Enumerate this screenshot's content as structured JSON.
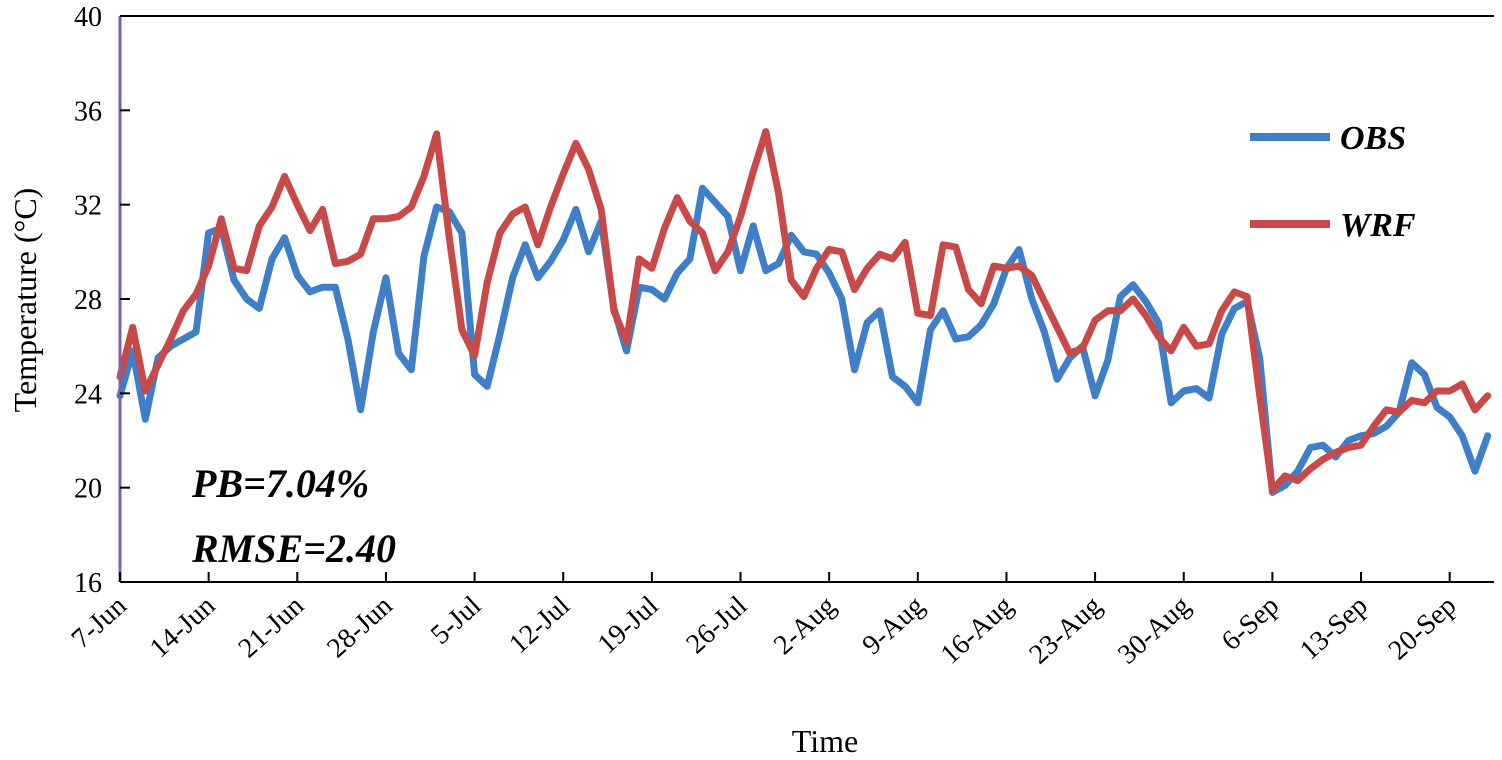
{
  "chart_data": {
    "type": "line",
    "xlabel": "Time",
    "ylabel": "Temperature (°C)",
    "ylim": [
      16,
      40
    ],
    "yticks": [
      16,
      20,
      24,
      28,
      32,
      36,
      40
    ],
    "x_start": "7-Jun",
    "x_tick_labels": [
      "7-Jun",
      "14-Jun",
      "21-Jun",
      "28-Jun",
      "5-Jul",
      "12-Jul",
      "19-Jul",
      "26-Jul",
      "2-Aug",
      "9-Aug",
      "16-Aug",
      "23-Aug",
      "30-Aug",
      "6-Sep",
      "13-Sep",
      "20-Sep"
    ],
    "x_tick_interval_days": 7,
    "legend_position": "top-right",
    "annotations": [
      "PB=7.04%",
      "RMSE=2.40"
    ],
    "series": [
      {
        "name": "OBS",
        "color": "#3f7fc8",
        "values": [
          23.9,
          25.8,
          22.9,
          25.5,
          26.0,
          26.3,
          26.6,
          30.8,
          31.0,
          28.8,
          28.0,
          27.6,
          29.7,
          30.6,
          29.0,
          28.3,
          28.5,
          28.5,
          26.3,
          23.3,
          26.6,
          28.9,
          25.7,
          25.0,
          29.8,
          31.9,
          31.7,
          30.8,
          24.8,
          24.3,
          26.5,
          28.9,
          30.3,
          28.9,
          29.6,
          30.5,
          31.8,
          30.0,
          31.3,
          27.6,
          25.8,
          28.5,
          28.4,
          28.0,
          29.1,
          29.7,
          32.7,
          32.1,
          31.5,
          29.2,
          31.1,
          29.2,
          29.5,
          30.7,
          30.0,
          29.9,
          29.1,
          28.0,
          25.0,
          27.0,
          27.5,
          24.7,
          24.3,
          23.6,
          26.7,
          27.5,
          26.3,
          26.4,
          26.9,
          27.8,
          29.3,
          30.1,
          28.0,
          26.6,
          24.6,
          25.5,
          26.0,
          23.9,
          25.4,
          28.1,
          28.6,
          27.9,
          27.0,
          23.6,
          24.1,
          24.2,
          23.8,
          26.5,
          27.6,
          27.9,
          25.5,
          19.8,
          20.1,
          20.7,
          21.7,
          21.8,
          21.3,
          22.0,
          22.2,
          22.3,
          22.6,
          23.2,
          25.3,
          24.8,
          23.4,
          23.0,
          22.2,
          20.7,
          22.2
        ]
      },
      {
        "name": "WRF",
        "color": "#c84a48",
        "values": [
          24.7,
          26.8,
          24.1,
          25.2,
          26.3,
          27.5,
          28.2,
          29.4,
          31.4,
          29.3,
          29.2,
          31.1,
          31.9,
          33.2,
          32.0,
          30.9,
          31.8,
          29.5,
          29.6,
          29.9,
          31.4,
          31.4,
          31.5,
          31.9,
          33.2,
          35.0,
          30.6,
          26.7,
          25.6,
          28.7,
          30.8,
          31.6,
          31.9,
          30.3,
          31.9,
          33.3,
          34.6,
          33.5,
          31.8,
          27.5,
          26.2,
          29.7,
          29.3,
          31.0,
          32.3,
          31.3,
          30.8,
          29.2,
          30.0,
          31.5,
          33.4,
          35.1,
          32.5,
          28.8,
          28.1,
          29.3,
          30.1,
          30.0,
          28.4,
          29.3,
          29.9,
          29.7,
          30.4,
          27.4,
          27.3,
          30.3,
          30.2,
          28.4,
          27.8,
          29.4,
          29.3,
          29.4,
          29.0,
          27.9,
          26.8,
          25.7,
          25.9,
          27.1,
          27.5,
          27.5,
          28.0,
          27.3,
          26.4,
          25.8,
          26.8,
          26.0,
          26.1,
          27.5,
          28.3,
          28.1,
          23.9,
          19.9,
          20.5,
          20.3,
          20.8,
          21.2,
          21.5,
          21.7,
          21.8,
          22.6,
          23.3,
          23.2,
          23.7,
          23.6,
          24.1,
          24.1,
          24.4,
          23.3,
          23.9
        ]
      }
    ]
  }
}
